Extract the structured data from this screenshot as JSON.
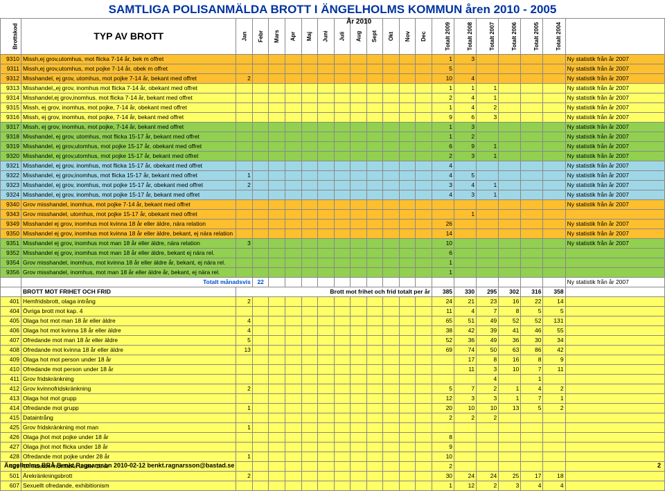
{
  "title": "SAMTLIGA POLISANMÄLDA BROTT I ÄNGELHOLMS KOMMUN  åren 2010 - 2005",
  "year2010": "År 2010",
  "headerVert": {
    "brottskod": "Brottskod"
  },
  "headerMain": "TYP AV BROTT",
  "months": [
    "Jan",
    "Febr",
    "Mars",
    "Apr",
    "Maj",
    "Juni",
    "Juli",
    "Aug",
    "Sept",
    "Okt",
    "Nov",
    "Dec"
  ],
  "totals": [
    "Totalt 2009",
    "Totalt 2008",
    "Totalt 2007",
    "Totalt 2006",
    "Totalt\n2005",
    "Totalt\n2004"
  ],
  "note2007": "Ny statistik från år 2007",
  "rows": [
    {
      "cls": "r-orange",
      "code": "9310",
      "desc": "Missh,ej grov,utomhus,      mot flicka 7-14 år, bek m offret",
      "m": [
        "",
        "",
        "",
        "",
        "",
        "",
        "",
        "",
        "",
        "",
        "",
        ""
      ],
      "t": [
        "1",
        "3",
        "",
        "",
        "",
        ""
      ],
      "note": "Ny statistik från år 2007"
    },
    {
      "cls": "r-orange",
      "code": "9311",
      "desc": "Missh,ej grov,utomhus,      mot pojke 7-14 år, obek m offret",
      "m": [
        "",
        "",
        "",
        "",
        "",
        "",
        "",
        "",
        "",
        "",
        "",
        ""
      ],
      "t": [
        "5",
        "",
        "",
        "",
        "",
        ""
      ],
      "note": "Ny statistik från år 2007"
    },
    {
      "cls": "r-orange",
      "code": "9312",
      "desc": "Misshandel, ej grov, utomhus,  mot pojke 7-14 år, bekant med offret",
      "m": [
        "2",
        "",
        "",
        "",
        "",
        "",
        "",
        "",
        "",
        "",
        "",
        ""
      ],
      "t": [
        "10",
        "4",
        "",
        "",
        "",
        ""
      ],
      "note": "Ny statistik från år 2007"
    },
    {
      "cls": "r-yellow",
      "code": "9313",
      "desc": "Misshandel,,ej grov, inomhus  mot flicka 7-14 år, obekant med offret",
      "m": [
        "",
        "",
        "",
        "",
        "",
        "",
        "",
        "",
        "",
        "",
        "",
        ""
      ],
      "t": [
        "1",
        "1",
        "1",
        "",
        "",
        ""
      ],
      "note": "Ny statistik från år 2007"
    },
    {
      "cls": "r-yellow",
      "code": "9314",
      "desc": "Misshandel,ej grov,inomhus.    mot flicka 7-14 år, bekant med offret",
      "m": [
        "",
        "",
        "",
        "",
        "",
        "",
        "",
        "",
        "",
        "",
        "",
        ""
      ],
      "t": [
        "2",
        "4",
        "1",
        "",
        "",
        ""
      ],
      "note": "Ny statistik från år 2007"
    },
    {
      "cls": "r-yellow",
      "code": "9315",
      "desc": "Missh, ej grov, inomhus,       mot pojke, 7-14 år, obekant med offret",
      "m": [
        "",
        "",
        "",
        "",
        "",
        "",
        "",
        "",
        "",
        "",
        "",
        ""
      ],
      "t": [
        "1",
        "4",
        "2",
        "",
        "",
        ""
      ],
      "note": "Ny statistik från år 2007"
    },
    {
      "cls": "r-yellow",
      "code": "9316",
      "desc": "Missh, ej grov, inomhus,       mot pojke, 7-14 år, bekant med offret",
      "m": [
        "",
        "",
        "",
        "",
        "",
        "",
        "",
        "",
        "",
        "",
        "",
        ""
      ],
      "t": [
        "9",
        "6",
        "3",
        "",
        "",
        ""
      ],
      "note": "Ny statistik från år 2007"
    },
    {
      "cls": "r-green",
      "code": "9317",
      "desc": "Missh, ej grov, inomhus,       mot pojke, 7-14 år, bekant med offret",
      "m": [
        "",
        "",
        "",
        "",
        "",
        "",
        "",
        "",
        "",
        "",
        "",
        ""
      ],
      "t": [
        "1",
        "3",
        "",
        "",
        "",
        ""
      ],
      "note": "Ny statistik från år 2007"
    },
    {
      "cls": "r-green",
      "code": "9318",
      "desc": "Misshandel, ej grov, utomhus,  mot flicka 15-17 år, bekant med offret",
      "m": [
        "",
        "",
        "",
        "",
        "",
        "",
        "",
        "",
        "",
        "",
        "",
        ""
      ],
      "t": [
        "1",
        "2",
        "",
        "",
        "",
        ""
      ],
      "note": "Ny statistik från år 2007"
    },
    {
      "cls": "r-green",
      "code": "9319",
      "desc": "Misshandel, ej grov,utomhus,  mot pojke 15-17 år, obekant med offret",
      "m": [
        "",
        "",
        "",
        "",
        "",
        "",
        "",
        "",
        "",
        "",
        "",
        ""
      ],
      "t": [
        "6",
        "9",
        "1",
        "",
        "",
        ""
      ],
      "note": "Ny statistik från år 2007"
    },
    {
      "cls": "r-green",
      "code": "9320",
      "desc": "Misshandel, ej grov,utomhus,  mot pojke 15-17 år, bekant med offret",
      "m": [
        "",
        "",
        "",
        "",
        "",
        "",
        "",
        "",
        "",
        "",
        "",
        ""
      ],
      "t": [
        "2",
        "3",
        "1",
        "",
        "",
        ""
      ],
      "note": "Ny statistik från år 2007"
    },
    {
      "cls": "r-cyan",
      "code": "9321",
      "desc": "Misshandel, ej grov, inomhus, mot flicka 15-17 år, obekant med offret",
      "m": [
        "",
        "",
        "",
        "",
        "",
        "",
        "",
        "",
        "",
        "",
        "",
        ""
      ],
      "t": [
        "4",
        "",
        "",
        "",
        "",
        ""
      ],
      "note": "Ny statistik från år 2007"
    },
    {
      "cls": "r-cyan",
      "code": "9322",
      "desc": "Misshandel, ej grov,inomhus,  mot flicka 15-17 år, bekant med offret",
      "m": [
        "1",
        "",
        "",
        "",
        "",
        "",
        "",
        "",
        "",
        "",
        "",
        ""
      ],
      "t": [
        "4",
        "5",
        "",
        "",
        "",
        ""
      ],
      "note": "Ny statistik från år 2007"
    },
    {
      "cls": "r-cyan",
      "code": "9323",
      "desc": "Misshandel, ej grov, inomhus, mot pojke 15-17 år, obekant med offret",
      "m": [
        "2",
        "",
        "",
        "",
        "",
        "",
        "",
        "",
        "",
        "",
        "",
        ""
      ],
      "t": [
        "3",
        "4",
        "1",
        "",
        "",
        ""
      ],
      "note": "Ny statistik från år 2007"
    },
    {
      "cls": "r-cyan",
      "code": "9324",
      "desc": "Misshandel, ej grov, inomhus, mot pojke 15-17 år, bekant med offret",
      "m": [
        "",
        "",
        "",
        "",
        "",
        "",
        "",
        "",
        "",
        "",
        "",
        ""
      ],
      "t": [
        "4",
        "3",
        "1",
        "",
        "",
        ""
      ],
      "note": "Ny statistik från år 2007"
    },
    {
      "cls": "r-orange",
      "code": "9340",
      "desc": "Grov misshandel, inomhus, mot pojke 7-14 år, bekant med offret",
      "m": [
        "",
        "",
        "",
        "",
        "",
        "",
        "",
        "",
        "",
        "",
        "",
        ""
      ],
      "t": [
        "",
        "",
        "",
        "",
        "",
        ""
      ],
      "note": "Ny statistik från år 2007"
    },
    {
      "cls": "r-orange",
      "code": "9343",
      "desc": "Grov misshandel, utomhus, mot pojke 15-17 år, obekant med offret",
      "m": [
        "",
        "",
        "",
        "",
        "",
        "",
        "",
        "",
        "",
        "",
        "",
        ""
      ],
      "t": [
        "",
        "1",
        "",
        "",
        "",
        ""
      ],
      "note": ""
    },
    {
      "cls": "r-orange",
      "code": "9349",
      "desc": "Misshandel ej grov, inomhus mot kvinna 18 år eller äldre, nära relation",
      "m": [
        "",
        "",
        "",
        "",
        "",
        "",
        "",
        "",
        "",
        "",
        "",
        ""
      ],
      "t": [
        "26",
        "",
        "",
        "",
        "",
        ""
      ],
      "note": "Ny statistik från år 2007"
    },
    {
      "cls": "r-orange",
      "code": "9350",
      "desc": "Misshandel ej grov, inomhus mot kvinna 18 år eller äldre, bekant, ej nära relation",
      "m": [
        "",
        "",
        "",
        "",
        "",
        "",
        "",
        "",
        "",
        "",
        "",
        ""
      ],
      "t": [
        "14",
        "",
        "",
        "",
        "",
        ""
      ],
      "note": "Ny statistik från år 2007"
    },
    {
      "cls": "r-green",
      "code": "9351",
      "desc": "Misshandel ej grov, inomhus mot man 18 år eller äldre, nära relation",
      "m": [
        "3",
        "",
        "",
        "",
        "",
        "",
        "",
        "",
        "",
        "",
        "",
        ""
      ],
      "t": [
        "10",
        "",
        "",
        "",
        "",
        ""
      ],
      "note": "Ny statistik från år 2007"
    },
    {
      "cls": "r-green",
      "code": "9352",
      "desc": "Misshandel ej grov, inomhus mot man 18 år eller äldre, bekant ej nära rel.",
      "m": [
        "",
        "",
        "",
        "",
        "",
        "",
        "",
        "",
        "",
        "",
        "",
        ""
      ],
      "t": [
        "6",
        "",
        "",
        "",
        "",
        ""
      ],
      "note": ""
    },
    {
      "cls": "r-green",
      "code": "9354",
      "desc": "Grov misshandel, inomhus, mot kvinna 18 år eller äldre år, bekant, ej nära rel.",
      "m": [
        "",
        "",
        "",
        "",
        "",
        "",
        "",
        "",
        "",
        "",
        "",
        ""
      ],
      "t": [
        "1",
        "",
        "",
        "",
        "",
        ""
      ],
      "note": ""
    },
    {
      "cls": "r-green",
      "code": "9356",
      "desc": "Grov misshandel, inomhus, mot man 18 år eller äldre år, bekant, ej nära rel.",
      "m": [
        "",
        "",
        "",
        "",
        "",
        "",
        "",
        "",
        "",
        "",
        "",
        ""
      ],
      "t": [
        "1",
        "",
        "",
        "",
        "",
        ""
      ],
      "note": ""
    },
    {
      "cls": "r-white",
      "code": "",
      "desc": "",
      "m": [
        "",
        "",
        "",
        "",
        "",
        "",
        "",
        "",
        "",
        "",
        "",
        ""
      ],
      "t": [
        "",
        "",
        "",
        "",
        "",
        ""
      ],
      "note": "Ny statistik från år 2007",
      "monthSumLabel": "Totalt månadsvis",
      "monthSum": "22"
    },
    {
      "cls": "r-white heading-row",
      "code": "",
      "desc": "BROTT MOT FRIHET OCH FRID",
      "m": [
        "",
        "",
        "",
        "",
        "",
        "",
        "",
        "",
        "",
        "",
        "",
        ""
      ],
      "t": [
        "385",
        "330",
        "295",
        "302",
        "316",
        "358"
      ],
      "note": "",
      "summaryLabel": "Brott mot frihet och frid totalt per år"
    },
    {
      "cls": "r-yellow",
      "code": "401",
      "desc": "Hemfridsbrott, olaga intrång",
      "m": [
        "2",
        "",
        "",
        "",
        "",
        "",
        "",
        "",
        "",
        "",
        "",
        ""
      ],
      "t": [
        "24",
        "21",
        "23",
        "16",
        "22",
        "14"
      ],
      "note": ""
    },
    {
      "cls": "r-yellow",
      "code": "404",
      "desc": "Övriga brott mot kap. 4",
      "m": [
        "",
        "",
        "",
        "",
        "",
        "",
        "",
        "",
        "",
        "",
        "",
        ""
      ],
      "t": [
        "11",
        "4",
        "7",
        "8",
        "5",
        "5"
      ],
      "note": ""
    },
    {
      "cls": "r-yellow",
      "code": "405",
      "desc": "Olaga hot mot man 18 år eller äldre",
      "m": [
        "4",
        "",
        "",
        "",
        "",
        "",
        "",
        "",
        "",
        "",
        "",
        ""
      ],
      "t": [
        "65",
        "51",
        "49",
        "52",
        "52",
        "131"
      ],
      "note": ""
    },
    {
      "cls": "r-yellow",
      "code": "406",
      "desc": "Olaga hot mot kvinna 18 år eller äldre",
      "m": [
        "4",
        "",
        "",
        "",
        "",
        "",
        "",
        "",
        "",
        "",
        "",
        ""
      ],
      "t": [
        "38",
        "42",
        "39",
        "41",
        "46",
        "55"
      ],
      "note": ""
    },
    {
      "cls": "r-yellow",
      "code": "407",
      "desc": "Ofredande mot man 18 år eller äldre",
      "m": [
        "5",
        "",
        "",
        "",
        "",
        "",
        "",
        "",
        "",
        "",
        "",
        ""
      ],
      "t": [
        "52",
        "36",
        "49",
        "36",
        "30",
        "34"
      ],
      "note": ""
    },
    {
      "cls": "r-yellow",
      "code": "408",
      "desc": "Ofredande mot kvinna 18 år eller äldre",
      "m": [
        "13",
        "",
        "",
        "",
        "",
        "",
        "",
        "",
        "",
        "",
        "",
        ""
      ],
      "t": [
        "69",
        "74",
        "50",
        "63",
        "86",
        "42"
      ],
      "note": ""
    },
    {
      "cls": "r-yellow",
      "code": "409",
      "desc": "Olaga hot mot person under 18 år",
      "m": [
        "",
        "",
        "",
        "",
        "",
        "",
        "",
        "",
        "",
        "",
        "",
        ""
      ],
      "t": [
        "",
        "17",
        "8",
        "16",
        "8",
        "9"
      ],
      "note": ""
    },
    {
      "cls": "r-yellow",
      "code": "410",
      "desc": "Ofredande mot person under 18 år",
      "m": [
        "",
        "",
        "",
        "",
        "",
        "",
        "",
        "",
        "",
        "",
        "",
        ""
      ],
      "t": [
        "",
        "11",
        "3",
        "10",
        "7",
        "11"
      ],
      "note": ""
    },
    {
      "cls": "r-yellow",
      "code": "411",
      "desc": "Grov fridskränkning",
      "m": [
        "",
        "",
        "",
        "",
        "",
        "",
        "",
        "",
        "",
        "",
        "",
        ""
      ],
      "t": [
        "",
        "",
        "4",
        "",
        "1",
        ""
      ],
      "note": ""
    },
    {
      "cls": "r-yellow",
      "code": "412",
      "desc": "Grov kvinnofridskränkning",
      "m": [
        "2",
        "",
        "",
        "",
        "",
        "",
        "",
        "",
        "",
        "",
        "",
        ""
      ],
      "t": [
        "5",
        "7",
        "2",
        "1",
        "4",
        "2"
      ],
      "note": ""
    },
    {
      "cls": "r-yellow",
      "code": "413",
      "desc": "Olaga hot mot grupp",
      "m": [
        "",
        "",
        "",
        "",
        "",
        "",
        "",
        "",
        "",
        "",
        "",
        ""
      ],
      "t": [
        "12",
        "3",
        "3",
        "1",
        "7",
        "1"
      ],
      "note": ""
    },
    {
      "cls": "r-yellow",
      "code": "414",
      "desc": "Ofredande mot grupp",
      "m": [
        "1",
        "",
        "",
        "",
        "",
        "",
        "",
        "",
        "",
        "",
        "",
        ""
      ],
      "t": [
        "20",
        "10",
        "10",
        "13",
        "5",
        "2"
      ],
      "note": ""
    },
    {
      "cls": "r-yellow",
      "code": "415",
      "desc": "Dataintrång",
      "m": [
        "",
        "",
        "",
        "",
        "",
        "",
        "",
        "",
        "",
        "",
        "",
        ""
      ],
      "t": [
        "2",
        "2",
        "2",
        "",
        "",
        ""
      ],
      "note": ""
    },
    {
      "cls": "r-yellow",
      "code": "425",
      "desc": "Grov fridskränkning mot man",
      "m": [
        "1",
        "",
        "",
        "",
        "",
        "",
        "",
        "",
        "",
        "",
        "",
        ""
      ],
      "t": [
        "",
        "",
        "",
        "",
        "",
        ""
      ],
      "note": ""
    },
    {
      "cls": "r-yellow",
      "code": "426",
      "desc": "Olaga jhot mot pojke under 18 år",
      "m": [
        "",
        "",
        "",
        "",
        "",
        "",
        "",
        "",
        "",
        "",
        "",
        ""
      ],
      "t": [
        "8",
        "",
        "",
        "",
        "",
        ""
      ],
      "note": ""
    },
    {
      "cls": "r-yellow",
      "code": "427",
      "desc": "Olaga jhot mot flicka under 18 år",
      "m": [
        "",
        "",
        "",
        "",
        "",
        "",
        "",
        "",
        "",
        "",
        "",
        ""
      ],
      "t": [
        "9",
        "",
        "",
        "",
        "",
        ""
      ],
      "note": ""
    },
    {
      "cls": "r-yellow",
      "code": "428",
      "desc": "Ofredande mot pojke under 28 år",
      "m": [
        "1",
        "",
        "",
        "",
        "",
        "",
        "",
        "",
        "",
        "",
        "",
        ""
      ],
      "t": [
        "10",
        "",
        "",
        "",
        "",
        ""
      ],
      "note": ""
    },
    {
      "cls": "r-yellow",
      "code": "429",
      "desc": "Ofredande mot flicka under 18 år",
      "m": [
        "",
        "",
        "",
        "",
        "",
        "",
        "",
        "",
        "",
        "",
        "",
        ""
      ],
      "t": [
        "2",
        "",
        "",
        "",
        "",
        ""
      ],
      "note": ""
    },
    {
      "cls": "r-yellow",
      "code": "501",
      "desc": "Ärekränkningsbrott",
      "m": [
        "2",
        "",
        "",
        "",
        "",
        "",
        "",
        "",
        "",
        "",
        "",
        ""
      ],
      "t": [
        "30",
        "24",
        "24",
        "25",
        "17",
        "18"
      ],
      "note": ""
    },
    {
      "cls": "r-yellow",
      "code": "607",
      "desc": "Sexuellt ofredande, exhibitionism",
      "m": [
        "",
        "",
        "",
        "",
        "",
        "",
        "",
        "",
        "",
        "",
        "",
        ""
      ],
      "t": [
        "1",
        "12",
        "2",
        "3",
        "4",
        "4"
      ],
      "note": ""
    }
  ],
  "footer": {
    "left": "Ängelholms BRÅ  Benkt Ragnarsson 2010-02-12  benkt.ragnarsson@bastad.se",
    "page": "2"
  }
}
